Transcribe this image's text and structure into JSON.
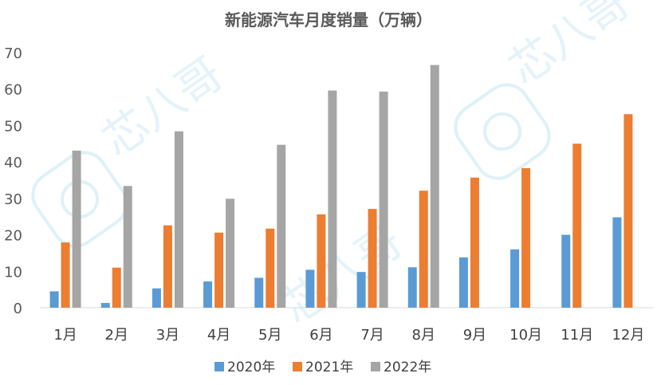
{
  "chart_data": {
    "type": "bar",
    "title": "新能源汽车月度销量（万辆）",
    "categories": [
      "1月",
      "2月",
      "3月",
      "4月",
      "5月",
      "6月",
      "7月",
      "8月",
      "9月",
      "10月",
      "11月",
      "12月"
    ],
    "series": [
      {
        "name": "2020年",
        "color": "#5B9BD5",
        "values": [
          4.5,
          1.3,
          5.3,
          7.2,
          8.2,
          10.4,
          9.8,
          11.1,
          13.8,
          16.0,
          20.0,
          24.8
        ]
      },
      {
        "name": "2021年",
        "color": "#ED7D31",
        "values": [
          17.9,
          11.0,
          22.6,
          20.6,
          21.7,
          25.6,
          27.1,
          32.1,
          35.7,
          38.3,
          45.0,
          53.1
        ]
      },
      {
        "name": "2022年",
        "color": "#A5A5A5",
        "values": [
          43.1,
          33.4,
          48.4,
          29.9,
          44.7,
          59.6,
          59.3,
          66.6,
          null,
          null,
          null,
          null
        ]
      }
    ],
    "yticks": [
      0,
      10,
      20,
      30,
      40,
      50,
      60,
      70
    ],
    "ylim": [
      0,
      70
    ],
    "grid": false,
    "legend": "bottom"
  },
  "watermark": {
    "text": "芯八哥"
  }
}
